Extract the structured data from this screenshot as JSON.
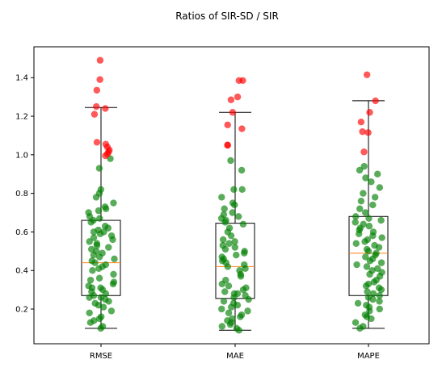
{
  "chart_data": {
    "type": "box",
    "title": "Ratios of SIR-SD / SIR",
    "xlabel": "",
    "ylabel": "",
    "categories": [
      "RMSE",
      "MAE",
      "MAPE"
    ],
    "ylim": [
      0.02,
      1.56
    ],
    "yticks": [
      0.2,
      0.4,
      0.6,
      0.8,
      1.0,
      1.2,
      1.4
    ],
    "ytick_labels": [
      "0.2",
      "0.4",
      "0.6",
      "0.8",
      "1.0",
      "1.2",
      "1.4"
    ],
    "grid": false,
    "colors": {
      "box": "#000000",
      "median": "#ff7f0e",
      "inlier": "#008000",
      "outlier": "#ff0000"
    },
    "boxes": [
      {
        "name": "RMSE",
        "q1": 0.27,
        "median": 0.44,
        "q3": 0.66,
        "whisker_low": 0.1,
        "whisker_high": 1.245,
        "outliers": [
          1.49,
          1.39,
          1.335,
          1.25,
          1.24,
          1.21,
          1.065,
          1.055,
          1.04,
          1.025,
          1.015,
          1.005,
          0.995
        ],
        "inliers": [
          0.1,
          0.11,
          0.13,
          0.14,
          0.15,
          0.16,
          0.18,
          0.19,
          0.21,
          0.22,
          0.23,
          0.24,
          0.25,
          0.26,
          0.26,
          0.27,
          0.28,
          0.29,
          0.3,
          0.31,
          0.31,
          0.32,
          0.33,
          0.34,
          0.35,
          0.36,
          0.38,
          0.4,
          0.41,
          0.42,
          0.43,
          0.44,
          0.45,
          0.46,
          0.47,
          0.48,
          0.49,
          0.5,
          0.51,
          0.52,
          0.53,
          0.54,
          0.55,
          0.56,
          0.57,
          0.58,
          0.59,
          0.6,
          0.6,
          0.61,
          0.62,
          0.63,
          0.65,
          0.66,
          0.67,
          0.68,
          0.7,
          0.71,
          0.72,
          0.73,
          0.75,
          0.78,
          0.8,
          0.82,
          0.93,
          0.98
        ]
      },
      {
        "name": "MAE",
        "q1": 0.255,
        "median": 0.42,
        "q3": 0.645,
        "whisker_low": 0.09,
        "whisker_high": 1.22,
        "outliers": [
          1.385,
          1.385,
          1.3,
          1.285,
          1.22,
          1.155,
          1.135,
          1.05,
          1.05
        ],
        "inliers": [
          0.09,
          0.1,
          0.11,
          0.12,
          0.13,
          0.14,
          0.15,
          0.16,
          0.17,
          0.18,
          0.19,
          0.2,
          0.21,
          0.22,
          0.23,
          0.24,
          0.25,
          0.26,
          0.27,
          0.28,
          0.28,
          0.29,
          0.3,
          0.31,
          0.32,
          0.33,
          0.35,
          0.37,
          0.38,
          0.4,
          0.41,
          0.42,
          0.43,
          0.44,
          0.45,
          0.46,
          0.47,
          0.48,
          0.49,
          0.5,
          0.51,
          0.52,
          0.53,
          0.54,
          0.55,
          0.56,
          0.58,
          0.6,
          0.62,
          0.64,
          0.65,
          0.66,
          0.67,
          0.68,
          0.69,
          0.7,
          0.72,
          0.74,
          0.75,
          0.78,
          0.82,
          0.82,
          0.92,
          0.97
        ]
      },
      {
        "name": "MAPE",
        "q1": 0.27,
        "median": 0.49,
        "q3": 0.68,
        "whisker_low": 0.1,
        "whisker_high": 1.28,
        "outliers": [
          1.415,
          1.28,
          1.22,
          1.17,
          1.12,
          1.115,
          1.015
        ],
        "inliers": [
          0.1,
          0.11,
          0.13,
          0.15,
          0.16,
          0.17,
          0.19,
          0.2,
          0.21,
          0.22,
          0.23,
          0.24,
          0.25,
          0.26,
          0.27,
          0.28,
          0.29,
          0.3,
          0.31,
          0.32,
          0.33,
          0.34,
          0.35,
          0.37,
          0.38,
          0.39,
          0.4,
          0.41,
          0.42,
          0.43,
          0.44,
          0.45,
          0.46,
          0.47,
          0.48,
          0.49,
          0.5,
          0.51,
          0.52,
          0.53,
          0.54,
          0.55,
          0.56,
          0.57,
          0.58,
          0.59,
          0.6,
          0.61,
          0.62,
          0.63,
          0.64,
          0.65,
          0.66,
          0.67,
          0.68,
          0.7,
          0.72,
          0.74,
          0.76,
          0.78,
          0.8,
          0.83,
          0.86,
          0.88,
          0.9,
          0.92,
          0.94
        ]
      }
    ]
  }
}
